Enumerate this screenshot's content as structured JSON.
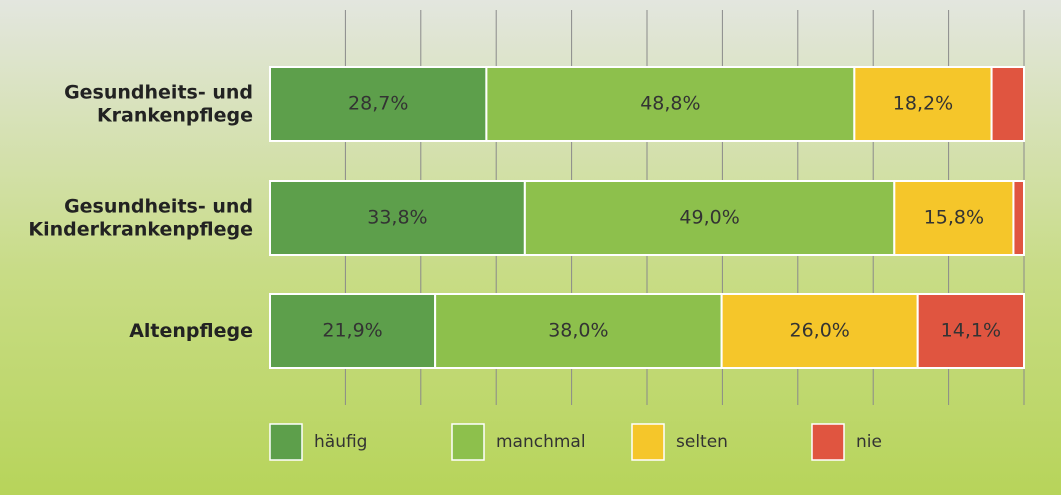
{
  "chart_data": {
    "type": "stacked-barh",
    "categories": [
      [
        "Gesundheits- und",
        "Krankenpflege"
      ],
      [
        "Gesundheits- und",
        "Kinderkrankenpflege"
      ],
      [
        "Altenpflege"
      ]
    ],
    "series": [
      {
        "name": "häufig",
        "color": "#5d9f4b",
        "values": [
          28.7,
          33.8,
          21.9
        ],
        "value_labels": [
          "28,7%",
          "33,8%",
          "21,9%"
        ]
      },
      {
        "name": "manchmal",
        "color": "#8dc04c",
        "values": [
          48.8,
          49.0,
          38.0
        ],
        "value_labels": [
          "48,8%",
          "49,0%",
          "38,0%"
        ]
      },
      {
        "name": "selten",
        "color": "#f5c62a",
        "values": [
          18.2,
          15.8,
          26.0
        ],
        "value_labels": [
          "18,2%",
          "15,8%",
          "26,0%"
        ]
      },
      {
        "name": "nie",
        "color": "#e05540",
        "values": [
          4.3,
          1.4,
          14.1
        ],
        "value_labels": [
          null,
          null,
          "14,1%"
        ]
      }
    ],
    "xlim": [
      0,
      100
    ],
    "xticks": [
      10,
      20,
      30,
      40,
      50,
      60,
      70,
      80,
      90,
      100
    ],
    "grid": true,
    "legend": "bottom"
  }
}
